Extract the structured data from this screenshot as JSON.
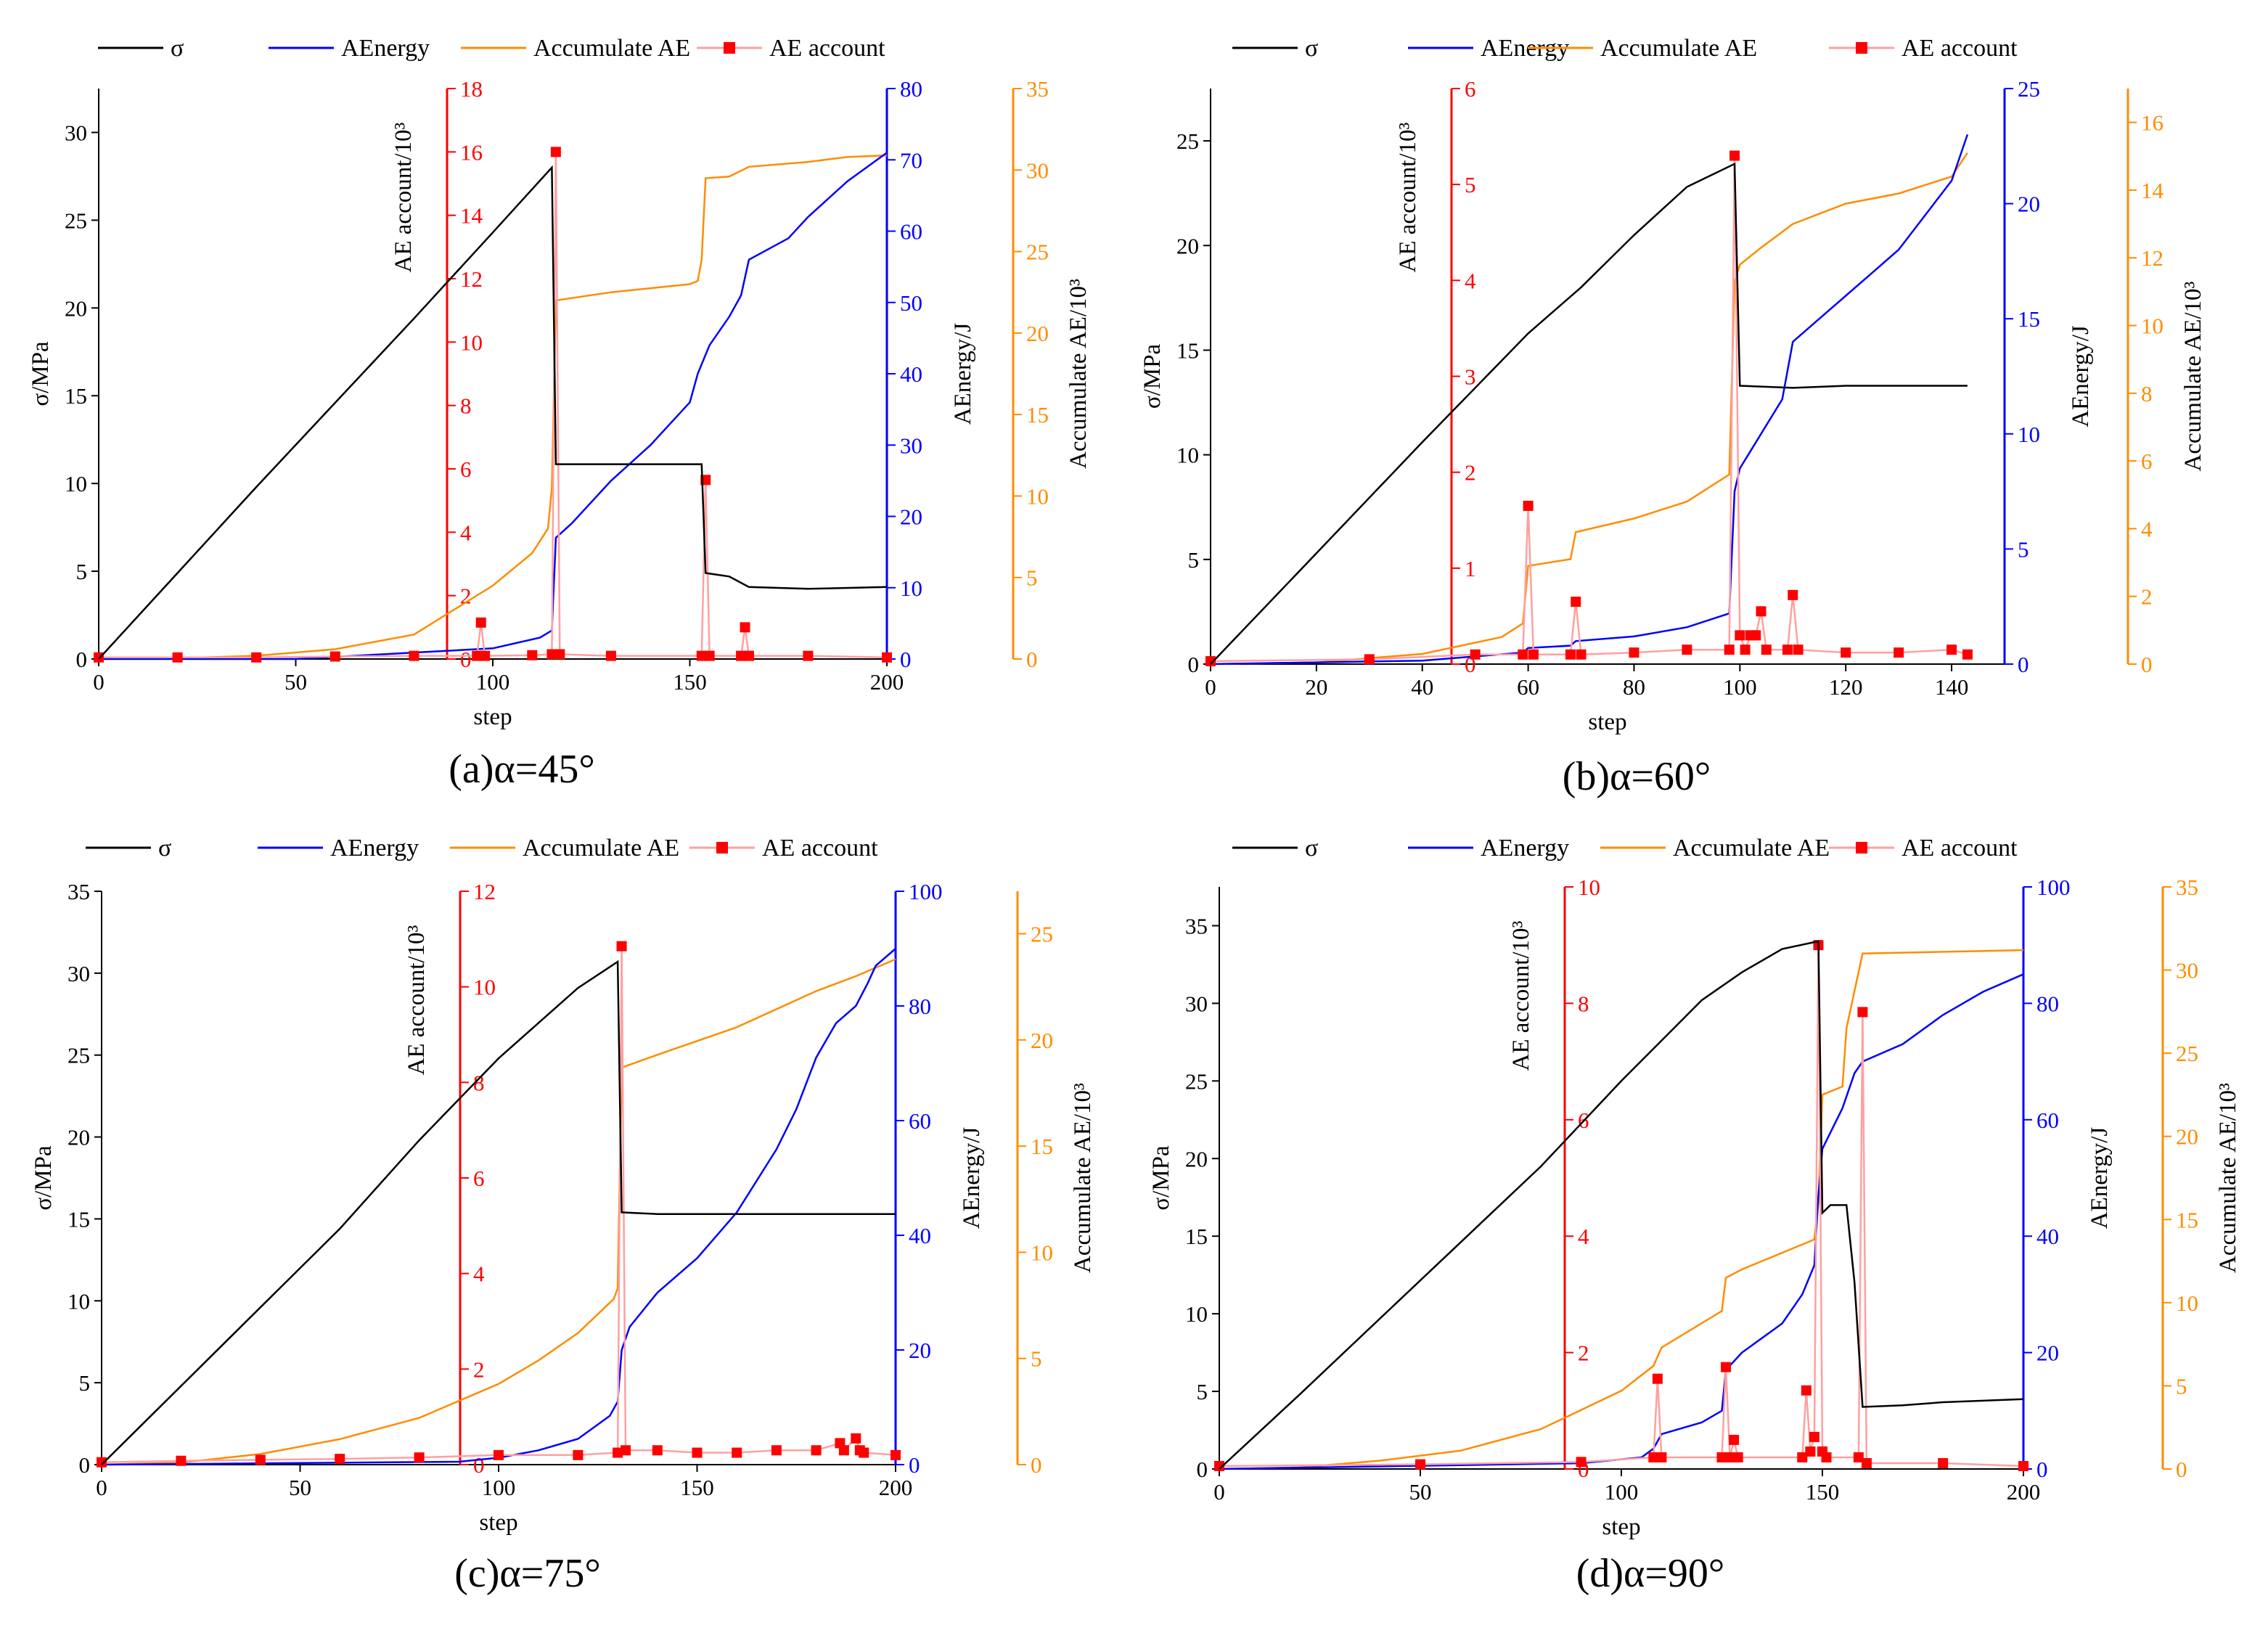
{
  "legend": {
    "sigma": "σ",
    "energy": "AEnergy",
    "accum": "Accumulate AE",
    "count": "AE account"
  },
  "colors": {
    "sigma": "#000000",
    "energy": "#0000ff",
    "accum": "#ff8c00",
    "count": "#ff0000",
    "count_line": "#ffa0a0"
  },
  "chart_data": [
    {
      "type": "line",
      "caption": "(a)α=45°",
      "xlabel": "step",
      "xlim": [
        0,
        200
      ],
      "xticks": [
        0,
        50,
        100,
        150,
        200
      ],
      "axes": {
        "sigma": {
          "label": "σ/MPa",
          "ylim": [
            0,
            32.5
          ],
          "ticks": [
            0,
            5,
            10,
            15,
            20,
            25,
            30
          ]
        },
        "count": {
          "label": "AE account/10³",
          "ylim": [
            0,
            18
          ],
          "ticks": [
            0,
            2,
            4,
            6,
            8,
            10,
            12,
            14,
            16,
            18
          ],
          "start_x": 88
        },
        "energy": {
          "label": "AEnergy/J",
          "ylim": [
            0,
            80
          ],
          "ticks": [
            0,
            10,
            20,
            30,
            40,
            50,
            60,
            70,
            80
          ]
        },
        "accum": {
          "label": "Accumulate AE/10³",
          "ylim": [
            0,
            35
          ],
          "ticks": [
            0,
            5,
            10,
            15,
            20,
            25,
            30,
            35
          ]
        }
      },
      "series": [
        {
          "key": "sigma",
          "x": [
            0,
            20,
            40,
            60,
            80,
            100,
            115,
            116,
            125,
            140,
            153,
            154,
            160,
            165,
            180,
            200
          ],
          "y": [
            0,
            4.9,
            9.8,
            14.6,
            19.4,
            24.3,
            28.0,
            11.1,
            11.1,
            11.1,
            11.1,
            4.9,
            4.7,
            4.1,
            4.0,
            4.1
          ]
        },
        {
          "key": "energy",
          "x": [
            0,
            50,
            100,
            112,
            115,
            116,
            120,
            130,
            140,
            150,
            152,
            155,
            160,
            163,
            165,
            175,
            180,
            190,
            200
          ],
          "y": [
            0,
            0,
            1.5,
            3,
            4,
            17,
            19,
            25,
            30,
            36,
            40,
            44,
            48,
            51,
            56,
            59,
            62,
            67,
            71
          ]
        },
        {
          "key": "accum",
          "x": [
            0,
            20,
            40,
            60,
            80,
            100,
            110,
            114,
            115,
            116,
            130,
            150,
            152,
            153,
            154,
            160,
            165,
            180,
            190,
            200
          ],
          "y": [
            0,
            0.05,
            0.2,
            0.6,
            1.5,
            4.5,
            6.5,
            8.0,
            10.5,
            22.0,
            22.5,
            23.0,
            23.2,
            24.5,
            29.5,
            29.6,
            30.2,
            30.5,
            30.8,
            30.9
          ]
        },
        {
          "key": "count",
          "x": [
            0,
            20,
            40,
            60,
            80,
            96,
            97,
            98,
            110,
            115,
            116,
            117,
            130,
            153,
            154,
            155,
            163,
            164,
            165,
            180,
            200
          ],
          "y": [
            0.05,
            0.05,
            0.05,
            0.08,
            0.1,
            0.1,
            1.15,
            0.1,
            0.12,
            0.15,
            16.0,
            0.15,
            0.1,
            0.1,
            5.65,
            0.1,
            0.1,
            1.0,
            0.1,
            0.1,
            0.05
          ]
        }
      ]
    },
    {
      "type": "line",
      "caption": "(b)α=60°",
      "xlabel": "step",
      "xlim": [
        0,
        150
      ],
      "xticks": [
        0,
        20,
        40,
        60,
        80,
        100,
        120,
        140
      ],
      "axes": {
        "sigma": {
          "label": "σ/MPa",
          "ylim": [
            0,
            27.5
          ],
          "ticks": [
            0,
            5,
            10,
            15,
            20,
            25
          ]
        },
        "count": {
          "label": "AE account/10³",
          "ylim": [
            0,
            6
          ],
          "ticks": [
            0,
            1,
            2,
            3,
            4,
            5,
            6
          ],
          "start_x": 46
        },
        "energy": {
          "label": "AEnergy/J",
          "ylim": [
            0,
            25
          ],
          "ticks": [
            0,
            5,
            10,
            15,
            20,
            25
          ]
        },
        "accum": {
          "label": "Accumulate AE/10³",
          "ylim": [
            0,
            17
          ],
          "ticks": [
            0,
            2,
            4,
            6,
            8,
            10,
            12,
            14,
            16
          ]
        }
      },
      "series": [
        {
          "key": "sigma",
          "x": [
            0,
            20,
            40,
            60,
            70,
            80,
            90,
            99,
            100,
            110,
            120,
            130,
            143
          ],
          "y": [
            0,
            5.3,
            10.6,
            15.8,
            18.0,
            20.5,
            22.8,
            23.9,
            13.3,
            13.2,
            13.3,
            13.3,
            13.3
          ]
        },
        {
          "key": "energy",
          "x": [
            0,
            40,
            59,
            60,
            68,
            69,
            80,
            90,
            98,
            99,
            100,
            104,
            108,
            110,
            115,
            120,
            125,
            130,
            135,
            140,
            143
          ],
          "y": [
            0,
            0.15,
            0.5,
            0.7,
            0.8,
            1.0,
            1.2,
            1.6,
            2.2,
            7.5,
            8.5,
            10.0,
            11.5,
            14.0,
            15.0,
            16.0,
            17.0,
            18.0,
            19.5,
            21.0,
            23.0
          ]
        },
        {
          "key": "accum",
          "x": [
            0,
            20,
            40,
            55,
            59,
            60,
            68,
            69,
            80,
            90,
            98,
            99,
            100,
            104,
            110,
            115,
            120,
            130,
            140,
            143
          ],
          "y": [
            0,
            0.05,
            0.3,
            0.8,
            1.2,
            2.9,
            3.1,
            3.9,
            4.3,
            4.8,
            5.6,
            11.3,
            11.8,
            12.3,
            13.0,
            13.3,
            13.6,
            13.9,
            14.4,
            15.1
          ]
        },
        {
          "key": "count",
          "x": [
            0,
            30,
            50,
            59,
            60,
            61,
            68,
            69,
            70,
            80,
            90,
            98,
            99,
            100,
            101,
            102,
            103,
            104,
            105,
            109,
            110,
            111,
            120,
            130,
            140,
            143
          ],
          "y": [
            0.03,
            0.05,
            0.1,
            0.1,
            1.65,
            0.1,
            0.1,
            0.65,
            0.1,
            0.12,
            0.15,
            0.15,
            5.3,
            0.3,
            0.15,
            0.3,
            0.3,
            0.55,
            0.15,
            0.15,
            0.72,
            0.15,
            0.12,
            0.12,
            0.15,
            0.1
          ]
        }
      ]
    },
    {
      "type": "line",
      "caption": "(c)α=75°",
      "xlabel": "step",
      "xlim": [
        0,
        200
      ],
      "xticks": [
        0,
        50,
        100,
        150,
        200
      ],
      "axes": {
        "sigma": {
          "label": "σ/MPa",
          "ylim": [
            0,
            35
          ],
          "ticks": [
            0,
            5,
            10,
            15,
            20,
            25,
            30,
            35
          ]
        },
        "count": {
          "label": "AE account/10³",
          "ylim": [
            0,
            12
          ],
          "ticks": [
            0,
            2,
            4,
            6,
            8,
            10,
            12
          ],
          "start_x": 90
        },
        "energy": {
          "label": "AEnergy/J",
          "ylim": [
            0,
            100
          ],
          "ticks": [
            0,
            20,
            40,
            60,
            80,
            100
          ]
        },
        "accum": {
          "label": "Accumulate AE/10³",
          "ylim": [
            0,
            27
          ],
          "ticks": [
            0,
            5,
            10,
            15,
            20,
            25
          ]
        }
      },
      "series": [
        {
          "key": "sigma",
          "x": [
            0,
            20,
            40,
            60,
            80,
            100,
            120,
            130,
            131,
            140,
            160,
            180,
            200
          ],
          "y": [
            0,
            4.8,
            9.6,
            14.4,
            19.8,
            24.8,
            29.1,
            30.7,
            15.4,
            15.3,
            15.3,
            15.3,
            15.3
          ]
        },
        {
          "key": "energy",
          "x": [
            0,
            90,
            100,
            110,
            120,
            128,
            130,
            131,
            133,
            140,
            150,
            160,
            170,
            175,
            180,
            185,
            190,
            193,
            195,
            200
          ],
          "y": [
            0,
            0.5,
            1.2,
            2.5,
            4.5,
            8.5,
            11.0,
            20,
            24,
            30,
            36,
            44,
            55,
            62,
            71,
            77,
            80,
            84,
            87,
            90
          ]
        },
        {
          "key": "accum",
          "x": [
            0,
            20,
            40,
            60,
            80,
            100,
            110,
            120,
            129,
            130,
            131,
            140,
            160,
            180,
            190,
            200
          ],
          "y": [
            0,
            0.1,
            0.5,
            1.2,
            2.2,
            3.8,
            4.9,
            6.2,
            7.8,
            8.3,
            18.7,
            19.3,
            20.6,
            22.3,
            23.0,
            23.8
          ]
        },
        {
          "key": "count",
          "x": [
            0,
            20,
            40,
            60,
            80,
            100,
            120,
            130,
            131,
            132,
            140,
            150,
            160,
            170,
            180,
            186,
            187,
            190,
            191,
            192,
            200
          ],
          "y": [
            0.05,
            0.08,
            0.1,
            0.12,
            0.15,
            0.2,
            0.2,
            0.25,
            10.85,
            0.3,
            0.3,
            0.25,
            0.25,
            0.3,
            0.3,
            0.45,
            0.3,
            0.55,
            0.3,
            0.25,
            0.2
          ]
        }
      ]
    },
    {
      "type": "line",
      "caption": "(d)α=90°",
      "xlabel": "step",
      "xlim": [
        0,
        200
      ],
      "xticks": [
        0,
        50,
        100,
        150,
        200
      ],
      "axes": {
        "sigma": {
          "label": "σ/MPa",
          "ylim": [
            0,
            37.5
          ],
          "ticks": [
            0,
            5,
            10,
            15,
            20,
            25,
            30,
            35
          ]
        },
        "count": {
          "label": "AE account/10³",
          "ylim": [
            0,
            10
          ],
          "ticks": [
            0,
            2,
            4,
            6,
            8,
            10
          ],
          "start_x": 86
        },
        "energy": {
          "label": "AEnergy/J",
          "ylim": [
            0,
            100
          ],
          "ticks": [
            0,
            20,
            40,
            60,
            80,
            100
          ]
        },
        "accum": {
          "label": "Accumulate AE/10³",
          "ylim": [
            0,
            35
          ],
          "ticks": [
            0,
            5,
            10,
            15,
            20,
            25,
            30,
            35
          ]
        }
      },
      "series": [
        {
          "key": "sigma",
          "x": [
            0,
            20,
            40,
            60,
            80,
            100,
            120,
            130,
            140,
            149,
            150,
            152,
            156,
            158,
            160,
            170,
            180,
            190,
            200
          ],
          "y": [
            0,
            4.8,
            9.7,
            14.6,
            19.5,
            25.0,
            30.2,
            32.0,
            33.5,
            34.0,
            16.5,
            17.0,
            17.0,
            12.0,
            4.0,
            4.1,
            4.3,
            4.4,
            4.5
          ]
        },
        {
          "key": "energy",
          "x": [
            0,
            90,
            105,
            108,
            110,
            120,
            125,
            126,
            130,
            140,
            145,
            148,
            149,
            150,
            155,
            158,
            160,
            170,
            180,
            190,
            200
          ],
          "y": [
            0,
            1,
            2,
            3.5,
            6,
            8,
            10,
            17,
            20,
            25,
            30,
            35,
            47,
            55,
            62,
            68,
            70,
            73,
            78,
            82,
            85
          ]
        },
        {
          "key": "accum",
          "x": [
            0,
            20,
            40,
            60,
            80,
            100,
            108,
            110,
            125,
            126,
            130,
            140,
            148,
            149,
            150,
            155,
            156,
            160,
            200
          ],
          "y": [
            0,
            0.1,
            0.5,
            1.1,
            2.4,
            4.7,
            6.2,
            7.3,
            9.5,
            11.5,
            12.0,
            13.0,
            13.8,
            16.0,
            22.5,
            23.0,
            26.5,
            31.0,
            31.2
          ]
        },
        {
          "key": "count",
          "x": [
            0,
            50,
            90,
            108,
            109,
            110,
            125,
            126,
            127,
            128,
            129,
            145,
            146,
            147,
            148,
            149,
            150,
            151,
            159,
            160,
            161,
            180,
            200
          ],
          "y": [
            0.05,
            0.08,
            0.12,
            0.2,
            1.55,
            0.2,
            0.2,
            1.75,
            0.2,
            0.5,
            0.2,
            0.2,
            1.35,
            0.3,
            0.55,
            9.0,
            0.3,
            0.2,
            0.2,
            7.85,
            0.1,
            0.1,
            0.05
          ]
        }
      ]
    }
  ]
}
